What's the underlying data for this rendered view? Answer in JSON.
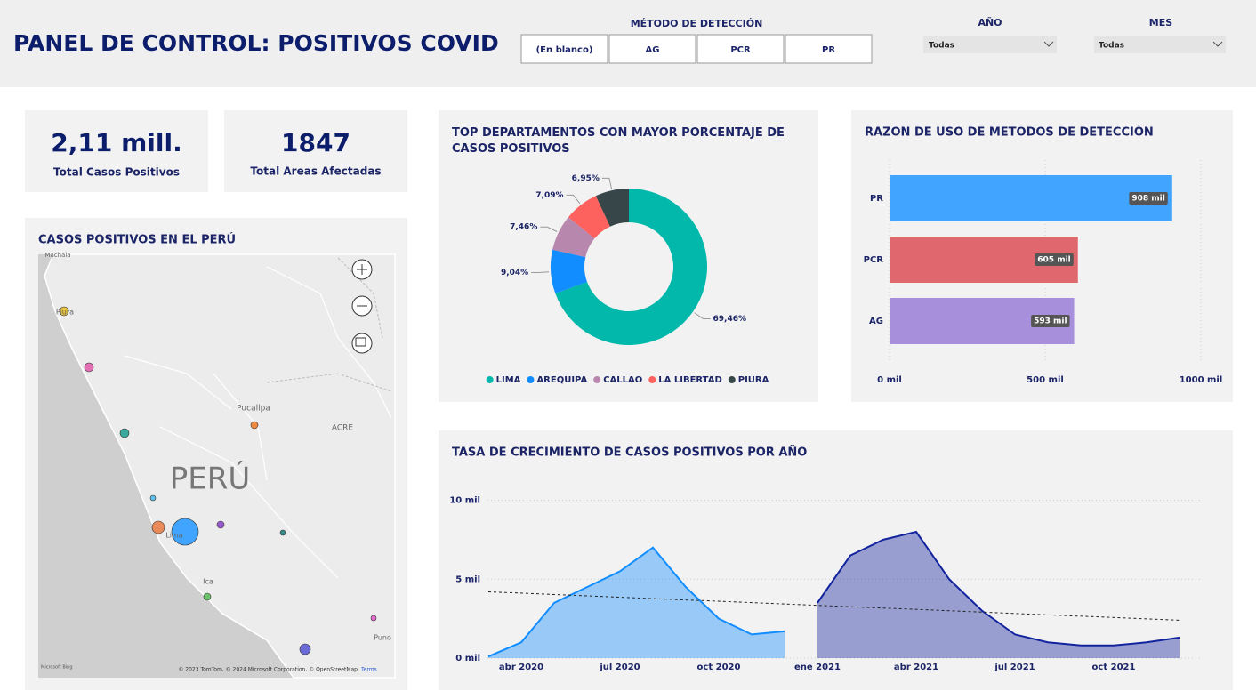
{
  "header": {
    "title": "PANEL DE CONTROL: POSITIVOS COVID",
    "detection_label": "MÉTODO DE DETECCIÓN",
    "detection_buttons": [
      "(En blanco)",
      "AG",
      "PCR",
      "PR"
    ],
    "year_label": "AÑO",
    "year_value": "Todas",
    "month_label": "MES",
    "month_value": "Todas"
  },
  "cards": [
    {
      "value": "2,11 mill.",
      "label": "Total Casos Positivos"
    },
    {
      "value": 1847,
      "label": "Total Areas Afectadas"
    }
  ],
  "map": {
    "title": "CASOS POSITIVOS EN EL PERÚ",
    "labels": [
      "PERÚ",
      "Pucallpa",
      "ACRE",
      "Lima",
      "Ica",
      "Puno",
      "Piura",
      "Machala"
    ],
    "attribution": "© 2023 TomTom, © 2024 Microsoft Corporation, © OpenStreetMap",
    "terms": "Terms",
    "provider": "Microsoft Bing"
  },
  "chart_data": [
    {
      "type": "donut",
      "title": "TOP DEPARTAMENTOS CON MAYOR PORCENTAJE DE CASOS POSITIVOS",
      "categories": [
        "LIMA",
        "AREQUIPA",
        "CALLAO",
        "LA LIBERTAD",
        "PIURA"
      ],
      "values": [
        69.46,
        9.04,
        7.46,
        7.09,
        6.95
      ],
      "value_labels": [
        "69,46%",
        "9,04%",
        "7,46%",
        "7,09%",
        "6,95%"
      ],
      "colors": [
        "#01B8AA",
        "#118DFF",
        "#B887AD",
        "#FD625E",
        "#374649"
      ]
    },
    {
      "type": "hbar",
      "title": "RAZON DE USO DE METODOS DE DETECCIÓN",
      "categories": [
        "PR",
        "PCR",
        "AG"
      ],
      "values": [
        908000,
        605000,
        593000
      ],
      "value_labels": [
        "908 mil",
        "605 mil",
        "593 mil"
      ],
      "colors": [
        "#41A4FF",
        "#E0676E",
        "#A88FDC"
      ],
      "xlim": [
        0,
        1000000
      ],
      "xticks": [
        {
          "value": 0,
          "label": "0 mil"
        },
        {
          "value": 500000,
          "label": "500 mil"
        },
        {
          "value": 1000000,
          "label": "1000 mil"
        }
      ],
      "grid": true
    },
    {
      "type": "area",
      "title": "TASA DE CRECIMIENTO DE CASOS POSITIVOS POR AÑO",
      "categories": [
        null,
        "abr 2020",
        null,
        null,
        "jul 2020",
        null,
        null,
        "oct 2020",
        null,
        null,
        "ene 2021",
        null,
        null,
        "abr 2021",
        null,
        null,
        "jul 2021",
        null,
        null,
        "oct 2021",
        null,
        null
      ],
      "series": [
        {
          "color": "#118DFF",
          "values": [
            100,
            1000,
            3500,
            4500,
            5500,
            7000,
            4500,
            2500,
            1500,
            1700,
            null,
            null,
            null,
            null,
            null,
            null,
            null,
            null,
            null,
            null,
            null,
            null
          ]
        },
        {
          "color": "#12239E",
          "values": [
            null,
            null,
            null,
            null,
            null,
            null,
            null,
            null,
            null,
            null,
            3500,
            6500,
            7500,
            8000,
            5000,
            3000,
            1500,
            1000,
            800,
            800,
            1000,
            1300
          ]
        }
      ],
      "trend": [
        4200,
        2400
      ],
      "ylim": [
        0,
        12000
      ],
      "yticks": [
        {
          "value": 0,
          "label": "0 mil"
        },
        {
          "value": 5000,
          "label": "5 mil"
        },
        {
          "value": 10000,
          "label": "10 mil"
        }
      ],
      "grid": true
    }
  ]
}
